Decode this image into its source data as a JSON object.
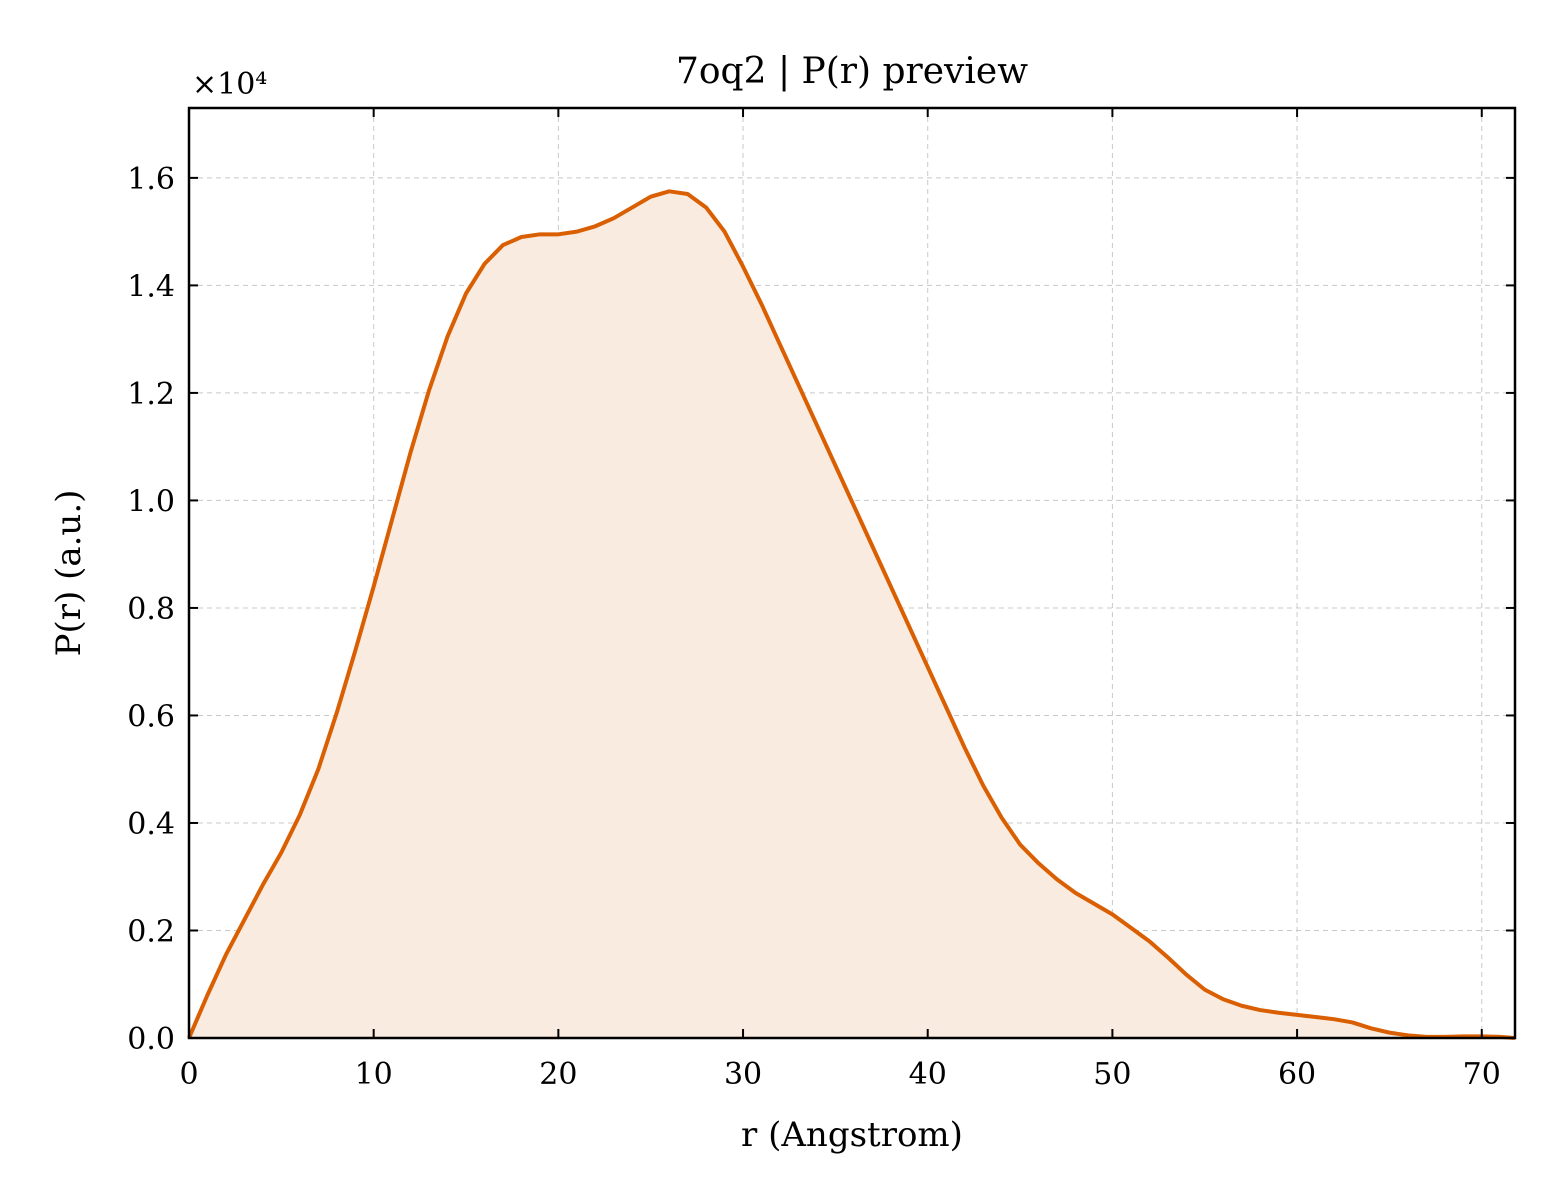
{
  "chart_data": {
    "type": "area",
    "title": "7oq2 | P(r) preview",
    "xlabel": "r (Angstrom)",
    "ylabel": "P(r) (a.u.)",
    "y_multiplier": "×10⁴",
    "xlim": [
      0,
      71.8
    ],
    "ylim": [
      0,
      1.73
    ],
    "xticks": [
      "0",
      "10",
      "20",
      "30",
      "40",
      "50",
      "60",
      "70"
    ],
    "xtick_values": [
      0,
      10,
      20,
      30,
      40,
      50,
      60,
      70
    ],
    "yticks": [
      "0.0",
      "0.2",
      "0.4",
      "0.6",
      "0.8",
      "1.0",
      "1.2",
      "1.4",
      "1.6"
    ],
    "ytick_values": [
      0,
      0.2,
      0.4,
      0.6,
      0.8,
      1.0,
      1.2,
      1.4,
      1.6
    ],
    "grid": true,
    "colors": {
      "line": "#d95f02",
      "fill": "#f9ebdf"
    },
    "series": [
      {
        "x": [
          0,
          1,
          2,
          3,
          4,
          5,
          6,
          7,
          8,
          9,
          10,
          11,
          12,
          13,
          14,
          15,
          16,
          17,
          18,
          19,
          20,
          21,
          22,
          23,
          24,
          25,
          26,
          27,
          28,
          29,
          30,
          31,
          32,
          33,
          34,
          35,
          36,
          37,
          38,
          39,
          40,
          41,
          42,
          43,
          44,
          45,
          46,
          47,
          48,
          49,
          50,
          51,
          52,
          53,
          54,
          55,
          56,
          57,
          58,
          59,
          60,
          61,
          62,
          63,
          64,
          65,
          66,
          67,
          68,
          69,
          70,
          71,
          71.8
        ],
        "y": [
          0.0,
          0.08,
          0.155,
          0.22,
          0.285,
          0.345,
          0.415,
          0.5,
          0.605,
          0.72,
          0.84,
          0.965,
          1.09,
          1.205,
          1.305,
          1.385,
          1.44,
          1.475,
          1.49,
          1.495,
          1.495,
          1.5,
          1.51,
          1.525,
          1.545,
          1.565,
          1.575,
          1.57,
          1.545,
          1.5,
          1.435,
          1.365,
          1.29,
          1.215,
          1.14,
          1.065,
          0.99,
          0.915,
          0.84,
          0.765,
          0.69,
          0.615,
          0.54,
          0.47,
          0.41,
          0.36,
          0.325,
          0.295,
          0.27,
          0.25,
          0.23,
          0.205,
          0.18,
          0.15,
          0.118,
          0.09,
          0.072,
          0.06,
          0.052,
          0.047,
          0.043,
          0.039,
          0.035,
          0.029,
          0.018,
          0.01,
          0.005,
          0.002,
          0.002,
          0.003,
          0.003,
          0.002,
          0.0
        ]
      }
    ]
  }
}
